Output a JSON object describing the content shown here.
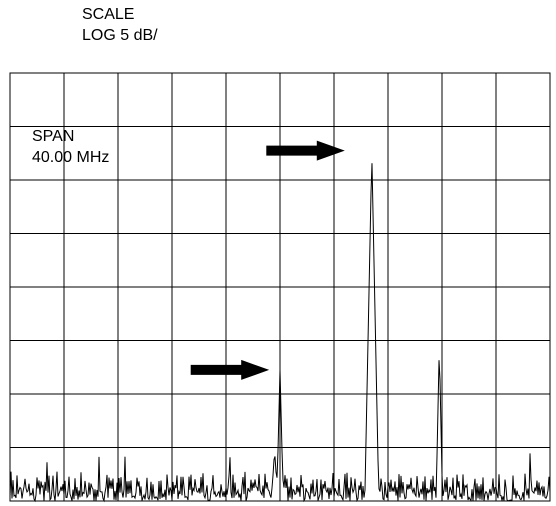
{
  "header": {
    "scale_title": "SCALE",
    "scale_value": "LOG 5 dB/"
  },
  "annotation": {
    "span_title": "SPAN",
    "span_value": "40.00 MHz"
  },
  "colors": {
    "trace": "#000000",
    "grid": "#000000",
    "arrow": "#000000",
    "background": "#ffffff"
  },
  "chart_data": {
    "type": "line",
    "title": "",
    "scale": "LOG 5 dB/",
    "span": "40.00 MHz",
    "x_divisions": 10,
    "y_divisions": 8,
    "grid": true,
    "ylim": [
      0,
      8
    ],
    "xlim": [
      0,
      10
    ],
    "peaks": [
      {
        "x": 6.7,
        "y": 6.5
      },
      {
        "x": 5.0,
        "y": 2.45
      },
      {
        "x": 7.95,
        "y": 2.9
      },
      {
        "x": 4.9,
        "y": 0.95
      }
    ],
    "noise_floor": [
      0.0,
      0.55
    ],
    "arrows": [
      {
        "tip_x": 6.2,
        "y": 6.55
      },
      {
        "tip_x": 4.8,
        "y": 2.45
      }
    ]
  }
}
